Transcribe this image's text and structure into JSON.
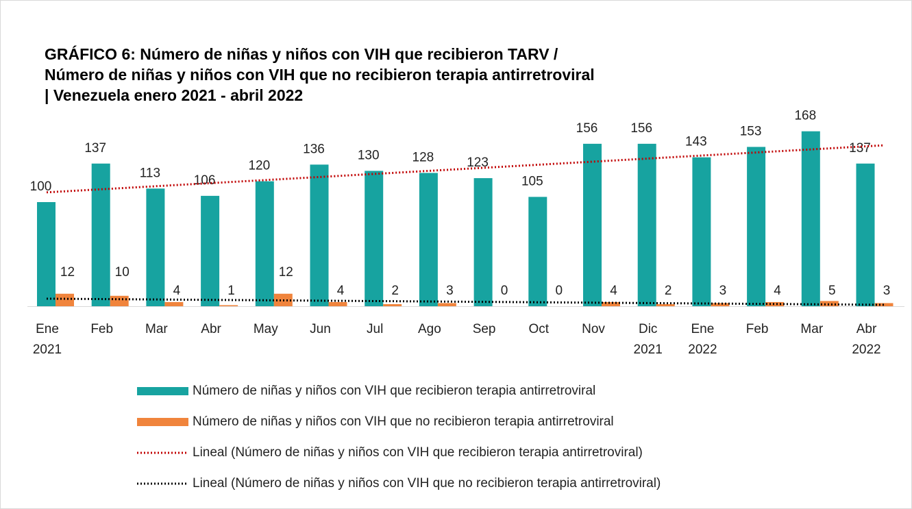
{
  "chart_data": {
    "type": "bar",
    "title": [
      "GRÁFICO 6: Número de niñas y niños con VIH que recibieron TARV /",
      "Número de niñas y niños con VIH que no recibieron terapia antirretroviral",
      "| Venezuela enero 2021 - abril 2022"
    ],
    "categories": [
      [
        "Ene",
        "2021"
      ],
      [
        "Feb"
      ],
      [
        "Mar"
      ],
      [
        "Abr"
      ],
      [
        "May"
      ],
      [
        "Jun"
      ],
      [
        "Jul"
      ],
      [
        "Ago"
      ],
      [
        "Sep"
      ],
      [
        "Oct"
      ],
      [
        "Nov"
      ],
      [
        "Dic",
        "2021"
      ],
      [
        "Ene",
        "2022"
      ],
      [
        "Feb"
      ],
      [
        "Mar"
      ],
      [
        "Abr",
        "2022"
      ]
    ],
    "series": [
      {
        "name": "Número de niñas y niños con VIH que recibieron terapia antirretroviral",
        "color": "#17a3a0",
        "values": [
          100,
          137,
          113,
          106,
          120,
          136,
          130,
          128,
          123,
          105,
          156,
          156,
          143,
          153,
          168,
          137
        ],
        "trendline": {
          "name": "Lineal (Número de niñas y niños con VIH que recibieron terapia antirretroviral)",
          "color": "#c00000"
        }
      },
      {
        "name": "Número de niñas y niños con VIH que no recibieron terapia antirretroviral",
        "color": "#f0843c",
        "values": [
          12,
          10,
          4,
          1,
          12,
          4,
          2,
          3,
          0,
          0,
          4,
          2,
          3,
          4,
          5,
          3
        ],
        "trendline": {
          "name": "Lineal (Número de niñas y niños con VIH que no recibieron terapia antirretroviral)",
          "color": "#000000"
        }
      }
    ]
  }
}
